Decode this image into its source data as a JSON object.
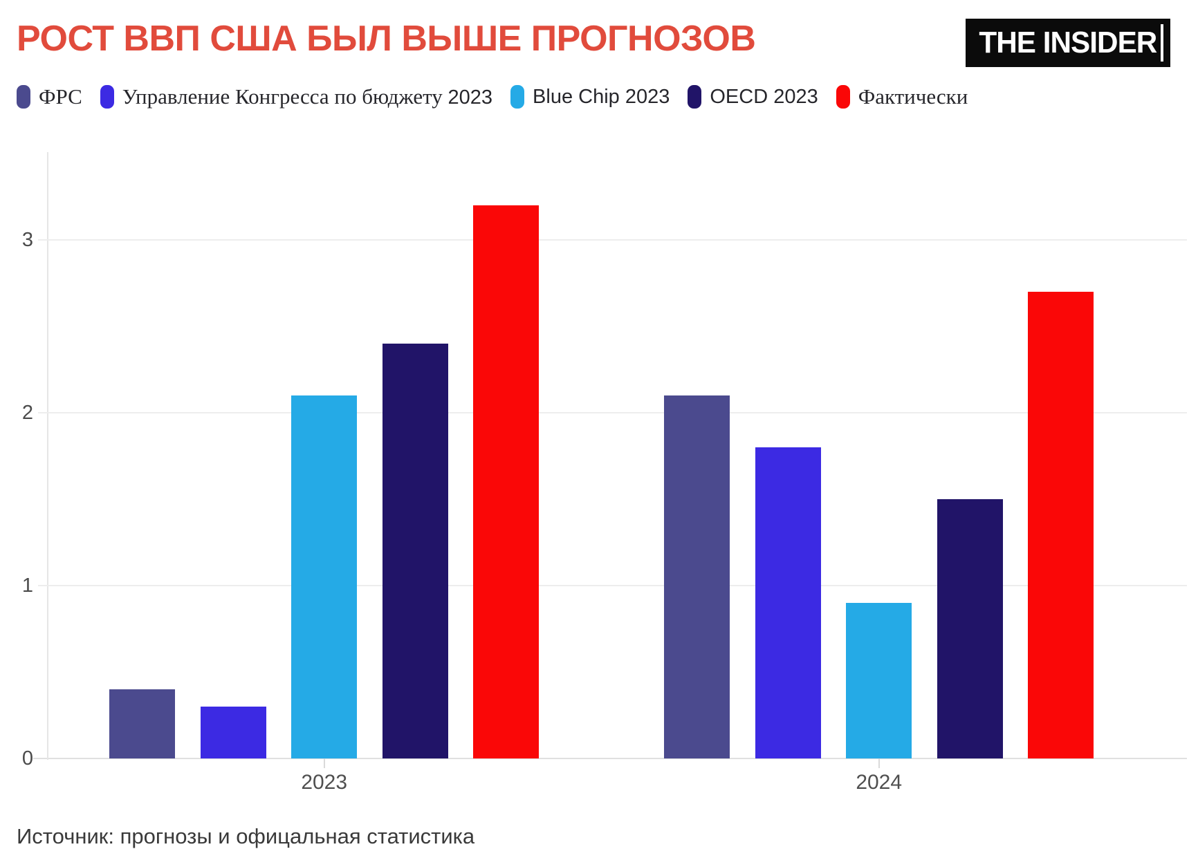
{
  "header": {
    "title": "РОСТ ВВП США БЫЛ ВЫШЕ ПРОГНОЗОВ",
    "title_color": "#e14b3c",
    "logo_text": "THE INSIDER"
  },
  "chart_data": {
    "type": "bar",
    "categories": [
      "2023",
      "2024"
    ],
    "series": [
      {
        "name": "ФРС",
        "color": "#4b4a8e",
        "values": [
          0.4,
          2.1
        ]
      },
      {
        "name": "Управление Конгресса по бюджету 2023",
        "color": "#3c2ae3",
        "values": [
          0.3,
          1.8
        ]
      },
      {
        "name": "Blue Chip 2023",
        "color": "#25aae6",
        "values": [
          2.1,
          0.9
        ]
      },
      {
        "name": "OECD 2023",
        "color": "#211468",
        "values": [
          2.4,
          1.5
        ]
      },
      {
        "name": "Фактически",
        "color": "#fa0707",
        "values": [
          3.2,
          2.7
        ]
      }
    ],
    "title": "РОСТ ВВП США БЫЛ ВЫШЕ ПРОГНОЗОВ",
    "xlabel": "",
    "ylabel": "",
    "yticks": [
      0,
      1,
      2,
      3
    ],
    "ylim": [
      0,
      3.5
    ],
    "grid": true,
    "legend_position": "top"
  },
  "footer": {
    "source": "Источник: прогнозы и офицальная статистика"
  }
}
